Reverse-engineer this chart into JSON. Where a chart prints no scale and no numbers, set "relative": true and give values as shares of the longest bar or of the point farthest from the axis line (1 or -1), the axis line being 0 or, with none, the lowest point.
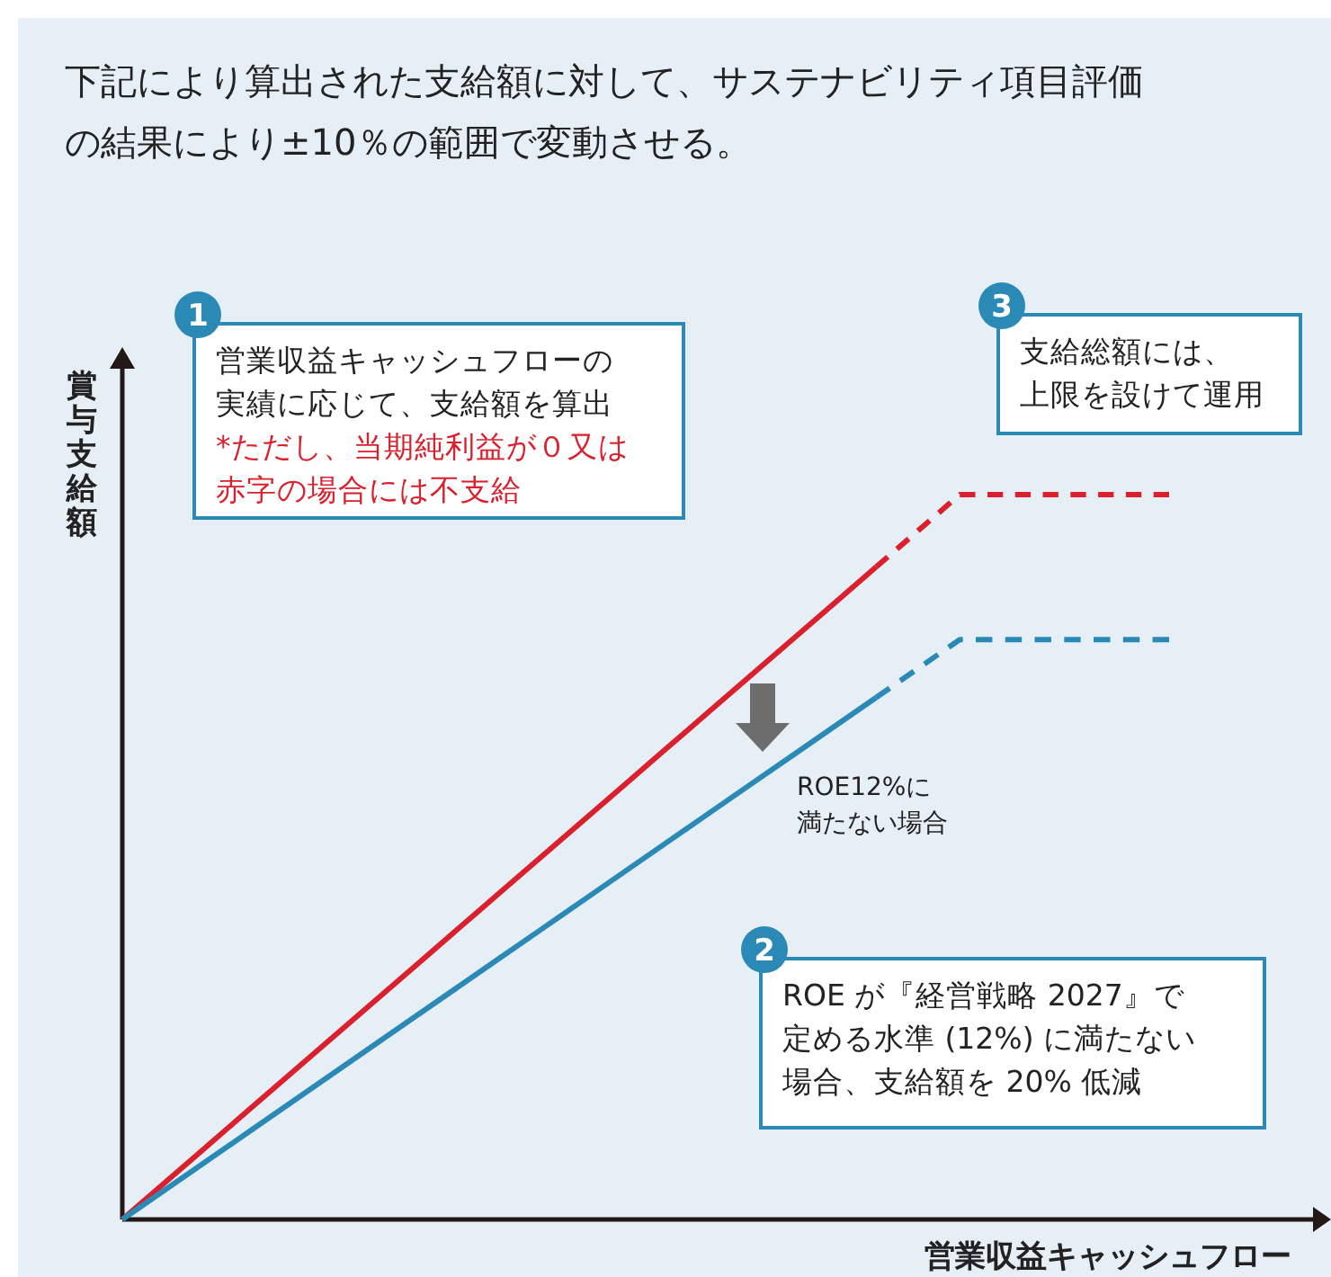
{
  "chart_data": {
    "type": "line",
    "relative": true,
    "title": "下記により算出された支給額に対して、サステナビリティ項目評価の結果により±10％の範囲で変動させる。",
    "xlabel": "営業収益キャッシュフロー",
    "ylabel": "賞与支給額",
    "categories": [
      null,
      null,
      null,
      null,
      null,
      null,
      null,
      null,
      null,
      null,
      null,
      null,
      null,
      null,
      null,
      null,
      null,
      null,
      null,
      null,
      null,
      null,
      null,
      null,
      null,
      null
    ],
    "series": [
      {
        "color": "#d9202c",
        "values": [
          0,
          0.05,
          0.1,
          0.15,
          0.2,
          0.25,
          0.3,
          0.35,
          0.4,
          0.45,
          0.5,
          0.55,
          0.6,
          0.65,
          0.7,
          0.75,
          0.8,
          0.85,
          0.9,
          null,
          null,
          null,
          null,
          null,
          null,
          null
        ]
      },
      {
        "color": "#d9202c",
        "line_style": "dashed",
        "values": [
          null,
          null,
          null,
          null,
          null,
          null,
          null,
          null,
          null,
          null,
          null,
          null,
          null,
          null,
          null,
          null,
          null,
          null,
          0.9,
          0.95,
          1,
          1,
          1,
          1,
          1,
          1
        ]
      },
      {
        "color": "#2b8ab5",
        "values": [
          0,
          0.04,
          0.08,
          0.12,
          0.16,
          0.2,
          0.24,
          0.28,
          0.32,
          0.36,
          0.4,
          0.44,
          0.48,
          0.52,
          0.56,
          0.6,
          0.64,
          0.68,
          0.72,
          null,
          null,
          null,
          null,
          null,
          null,
          null
        ]
      },
      {
        "color": "#2b8ab5",
        "line_style": "dashed",
        "values": [
          null,
          null,
          null,
          null,
          null,
          null,
          null,
          null,
          null,
          null,
          null,
          null,
          null,
          null,
          null,
          null,
          null,
          null,
          0.72,
          0.76,
          0.8,
          0.8,
          0.8,
          0.8,
          0.8,
          0.8
        ]
      }
    ],
    "annotations": [
      "1",
      "営業収益キャッシュフローの実績に応じて、支給額を算出",
      "*ただし、当期純利益が０又は赤字の場合には不支給",
      "2",
      "ROE が『経営戦略 2027』で定める水準 (12%) に満たない場合、支給額を 20% 低減",
      "3",
      "支給総額には、上限を設けて運用",
      "ROE12%に満たない場合"
    ]
  }
}
